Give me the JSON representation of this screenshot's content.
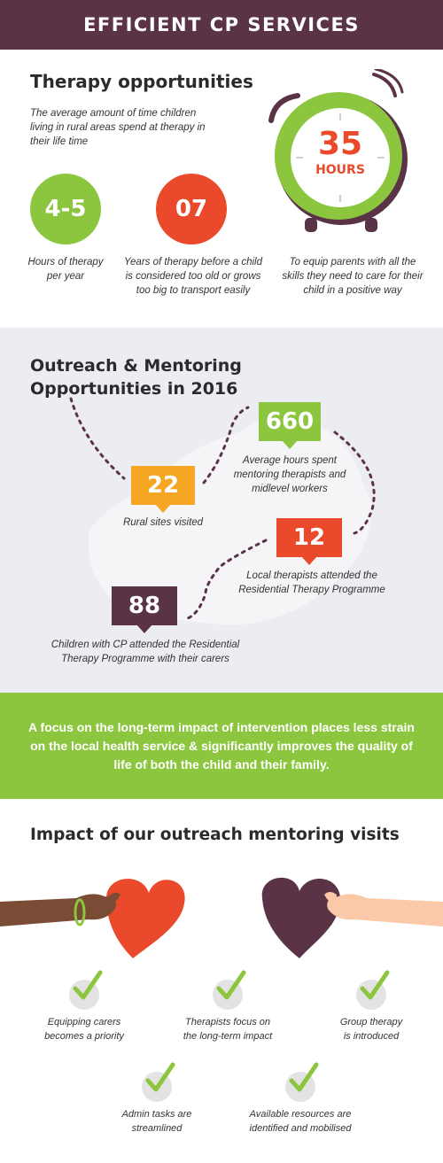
{
  "header": {
    "title": "EFFICIENT CP SERVICES"
  },
  "therapy": {
    "title": "Therapy opportunities",
    "intro": "The average amount of time children living in rural areas spend at therapy in their life time",
    "stats": [
      {
        "value": "4-5",
        "caption": "Hours of therapy per year",
        "color": "#8cc63f"
      },
      {
        "value": "07",
        "caption": "Years of therapy before a child is considered too old or grows too big to transport easily",
        "color": "#ea4a2b"
      }
    ],
    "clock": {
      "value": "35",
      "unit": "HOURS",
      "caption": "To equip parents with all the skills they need to care for their child in a positive way",
      "color": "#8cc63f",
      "text_color": "#ea4a2b"
    }
  },
  "outreach": {
    "title_line1": "Outreach & Mentoring",
    "title_line2": "Opportunities in 2016",
    "callouts": [
      {
        "value": "660",
        "caption": "Average hours spent mentoring therapists and midlevel workers",
        "color": "#8cc63f"
      },
      {
        "value": "22",
        "caption": "Rural sites visited",
        "color": "#f5a623"
      },
      {
        "value": "12",
        "caption": "Local therapists attended the Residential Therapy Programme",
        "color": "#ea4a2b"
      },
      {
        "value": "88",
        "caption": "Children with CP attended the Residential Therapy Programme with their carers",
        "color": "#5a3346"
      }
    ]
  },
  "banner": {
    "text": "A focus on the long-term impact of intervention places less strain on the local health service & significantly improves the quality of life of both the child and their family."
  },
  "impact": {
    "title": "Impact of our outreach mentoring visits",
    "items": [
      {
        "label_line1": "Equipping carers",
        "label_line2": "becomes a priority"
      },
      {
        "label_line1": "Therapists focus on",
        "label_line2": "the long-term impact"
      },
      {
        "label_line1": "Group therapy",
        "label_line2": "is introduced"
      },
      {
        "label_line1": "Admin tasks are",
        "label_line2": "streamlined"
      },
      {
        "label_line1": "Available resources are",
        "label_line2": "identified and mobilised"
      }
    ]
  },
  "colors": {
    "plum": "#5a3346",
    "green": "#8cc63f",
    "red": "#ea4a2b",
    "orange": "#f5a623",
    "lavender": "#ececf3"
  }
}
